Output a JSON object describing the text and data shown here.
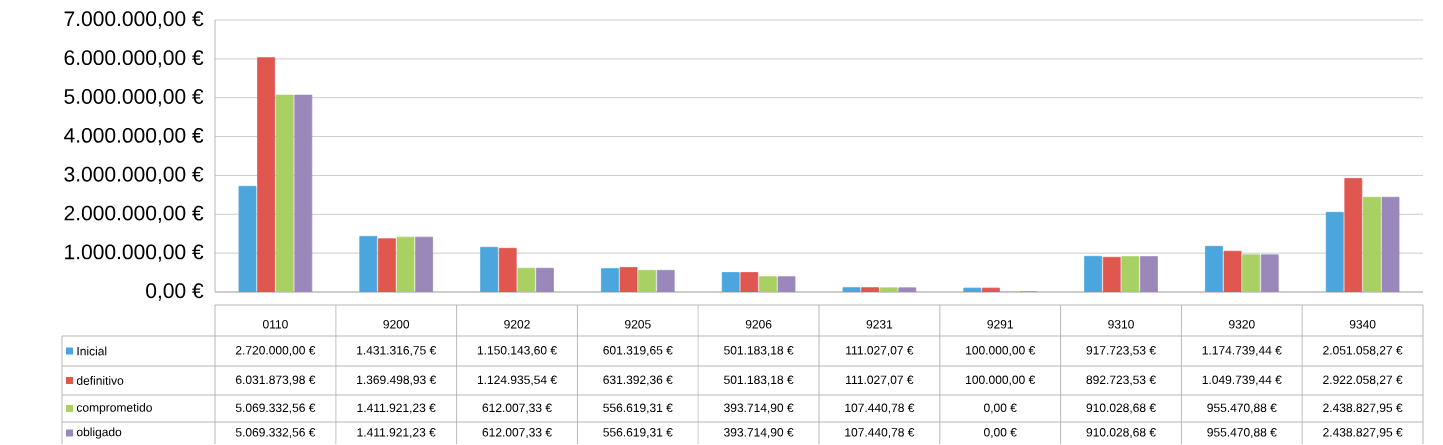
{
  "chart_data": {
    "type": "bar",
    "categories": [
      "0110",
      "9200",
      "9202",
      "9205",
      "9206",
      "9231",
      "9291",
      "9310",
      "9320",
      "9340"
    ],
    "series": [
      {
        "name": "Inicial",
        "color": "#4aa6dc",
        "values": [
          2720000.0,
          1431316.75,
          1150143.6,
          601319.65,
          501183.18,
          111027.07,
          100000.0,
          917723.53,
          1174739.44,
          2051058.27
        ],
        "value_labels": [
          "2.720.000,00 €",
          "1.431.316,75 €",
          "1.150.143,60 €",
          "601.319,65 €",
          "501.183,18 €",
          "111.027,07 €",
          "100.000,00 €",
          "917.723,53 €",
          "1.174.739,44 €",
          "2.051.058,27 €"
        ]
      },
      {
        "name": "definitivo",
        "color": "#e0574f",
        "values": [
          6031873.98,
          1369498.93,
          1124935.54,
          631392.36,
          501183.18,
          111027.07,
          100000.0,
          892723.53,
          1049739.44,
          2922058.27
        ],
        "value_labels": [
          "6.031.873,98 €",
          "1.369.498,93 €",
          "1.124.935,54 €",
          "631.392,36 €",
          "501.183,18 €",
          "111.027,07 €",
          "100.000,00 €",
          "892.723,53 €",
          "1.049.739,44 €",
          "2.922.058,27 €"
        ]
      },
      {
        "name": "comprometido",
        "color": "#a9d062",
        "values": [
          5069332.56,
          1411921.23,
          612007.33,
          556619.31,
          393714.9,
          107440.78,
          0.0,
          910028.68,
          955470.88,
          2438827.95
        ],
        "value_labels": [
          "5.069.332,56 €",
          "1.411.921,23 €",
          "612.007,33 €",
          "556.619,31 €",
          "393.714,90 €",
          "107.440,78 €",
          "0,00 €",
          "910.028,68 €",
          "955.470,88 €",
          "2.438.827,95 €"
        ]
      },
      {
        "name": "obligado",
        "color": "#9b88bb",
        "values": [
          5069332.56,
          1411921.23,
          612007.33,
          556619.31,
          393714.9,
          107440.78,
          0.0,
          910028.68,
          955470.88,
          2438827.95
        ],
        "value_labels": [
          "5.069.332,56 €",
          "1.411.921,23 €",
          "612.007,33 €",
          "556.619,31 €",
          "393.714,90 €",
          "107.440,78 €",
          "0,00 €",
          "910.028,68 €",
          "955.470,88 €",
          "2.438.827,95 €"
        ]
      }
    ],
    "ylim": [
      0,
      7000000
    ],
    "yticks": [
      {
        "value": 0,
        "label": "0,00 €"
      },
      {
        "value": 1000000,
        "label": "1.000.000,00 €"
      },
      {
        "value": 2000000,
        "label": "2.000.000,00 €"
      },
      {
        "value": 3000000,
        "label": "3.000.000,00 €"
      },
      {
        "value": 4000000,
        "label": "4.000.000,00 €"
      },
      {
        "value": 5000000,
        "label": "5.000.000,00 €"
      },
      {
        "value": 6000000,
        "label": "6.000.000,00 €"
      },
      {
        "value": 7000000,
        "label": "7.000.000,00 €"
      }
    ],
    "grid": "y",
    "legend": "bottom"
  }
}
